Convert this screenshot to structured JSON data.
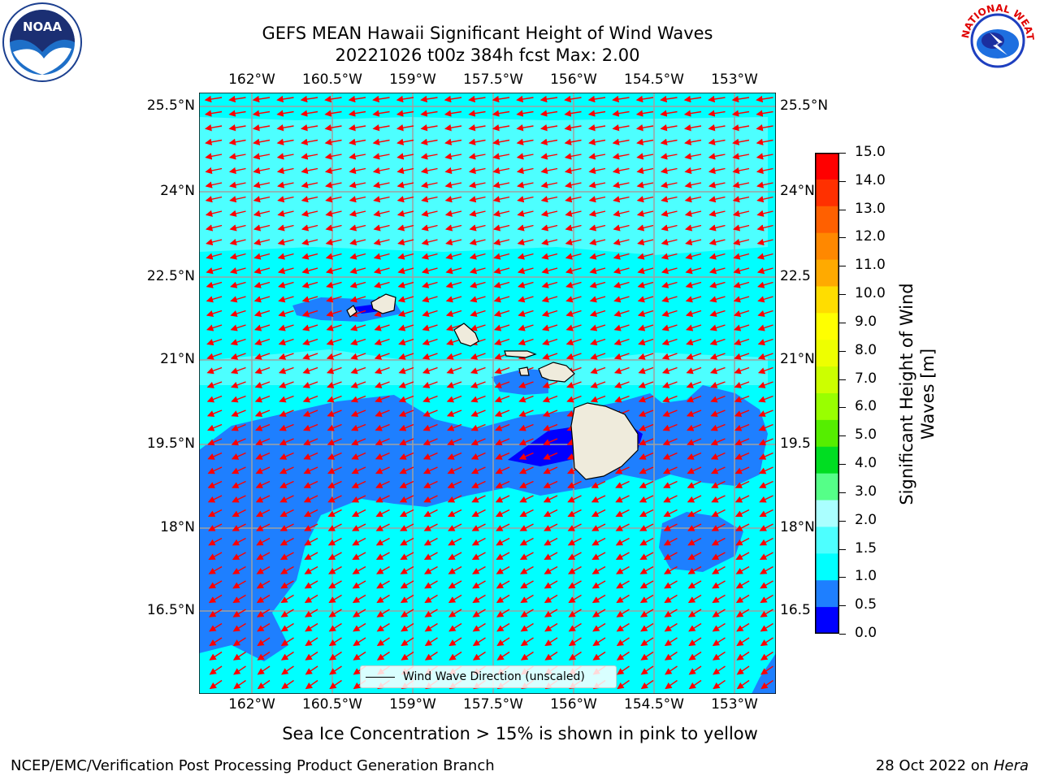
{
  "title": {
    "line1": "GEFS MEAN Hawaii Significant Height of Wind Waves",
    "line2": "20221026 t00z 384h fcst   Max: 2.00"
  },
  "map": {
    "lon_ticks": [
      "162°W",
      "160.5°W",
      "159°W",
      "157.5°W",
      "156°W",
      "154.5°W",
      "153°W"
    ],
    "lat_ticks_left": [
      "25.5°N",
      "24°N",
      "22.5°N",
      "21°N",
      "19.5°N",
      "18°N",
      "16.5°N"
    ],
    "lat_ticks_right": [
      "25.5°N",
      "24°N",
      "22.5",
      "21°N",
      "19.5",
      "18°N",
      "16.5"
    ],
    "legend": "Wind Wave Direction (unscaled)",
    "ocean_color": "#00ffff",
    "light_band_color": "#4dffff",
    "mid_color": "#1e7fff",
    "low_color": "#0000ff",
    "land_color": "#efebdc",
    "arrow_color": "#ff0000",
    "grid": "on"
  },
  "colorbar": {
    "label": "Significant Height of Wind Waves [m]",
    "label_line1": "Significant Height of Wind",
    "label_line2": "Waves [m]",
    "ticks": [
      "15.0",
      "14.0",
      "13.0",
      "12.0",
      "11.0",
      "10.0",
      "9.0",
      "8.0",
      "7.0",
      "6.0",
      "5.0",
      "4.0",
      "3.0",
      "2.0",
      "1.5",
      "1.0",
      "0.5",
      "0.0"
    ],
    "colors": [
      "#ff0000",
      "#ff3000",
      "#ff6000",
      "#ff8800",
      "#ffaa00",
      "#ffdd00",
      "#ffff00",
      "#eeff00",
      "#ccff00",
      "#99ff00",
      "#55ee00",
      "#00dd22",
      "#55ff88",
      "#aaffff",
      "#4dffff",
      "#00ffff",
      "#1e7fff",
      "#0000ff"
    ]
  },
  "subtitle": "Sea Ice Concentration > 15% is shown in pink to yellow",
  "footer": {
    "left": "NCEP/EMC/Verification Post Processing Product Generation Branch",
    "right_prefix": "28 Oct 2022 on ",
    "right_host": "Hera"
  },
  "logos": {
    "noaa_text": "NOAA",
    "nws_text": "NATIONAL WEATHER SERVICE"
  }
}
